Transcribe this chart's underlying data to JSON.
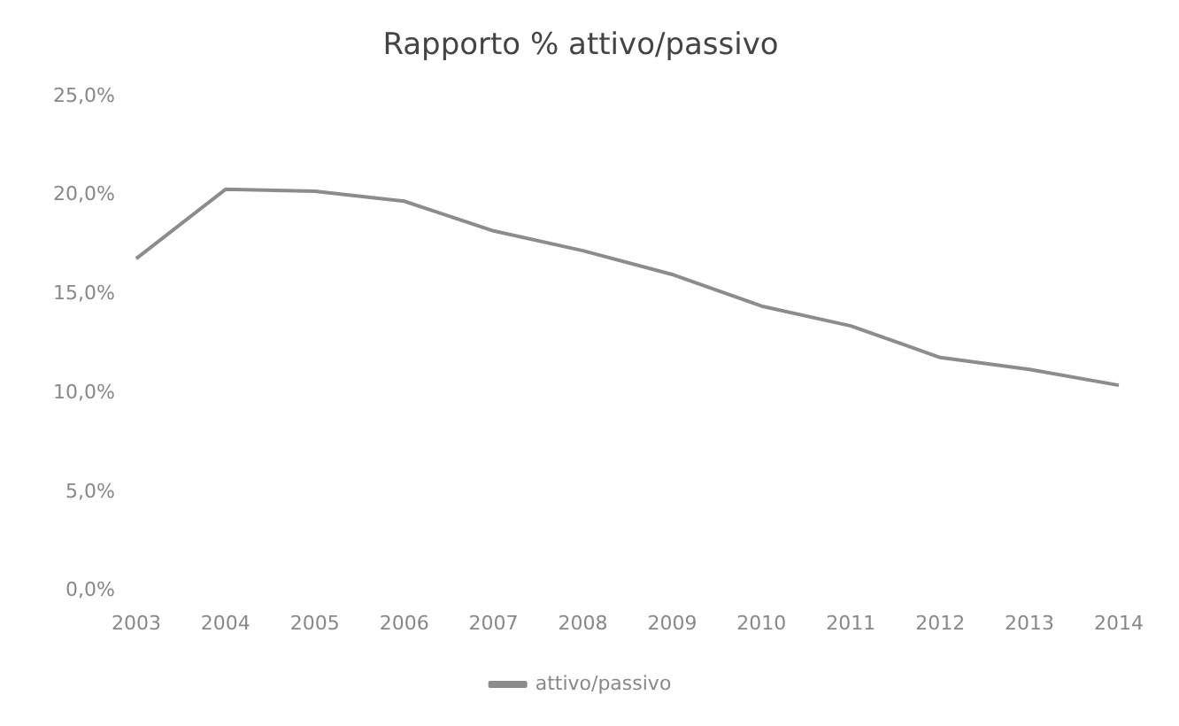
{
  "chart_data": {
    "type": "line",
    "title": "Rapporto % attivo/passivo",
    "categories": [
      "2003",
      "2004",
      "2005",
      "2006",
      "2007",
      "2008",
      "2009",
      "2010",
      "2011",
      "2012",
      "2013",
      "2014"
    ],
    "series": [
      {
        "name": "attivo/passivo",
        "color": "#8c8c8c",
        "values": [
          16.8,
          20.3,
          20.2,
          19.7,
          18.2,
          17.2,
          16.0,
          14.4,
          13.4,
          11.8,
          11.2,
          10.4
        ]
      }
    ],
    "ylim": [
      0,
      25
    ],
    "yticks": [
      {
        "value": 0,
        "label": "0,0%"
      },
      {
        "value": 5,
        "label": "5,0%"
      },
      {
        "value": 10,
        "label": "10,0%"
      },
      {
        "value": 15,
        "label": "15,0%"
      },
      {
        "value": 20,
        "label": "20,0%"
      },
      {
        "value": 25,
        "label": "25,0%"
      }
    ],
    "grid": false,
    "legend": "bottom",
    "marker": "none",
    "line_style": "solid"
  }
}
